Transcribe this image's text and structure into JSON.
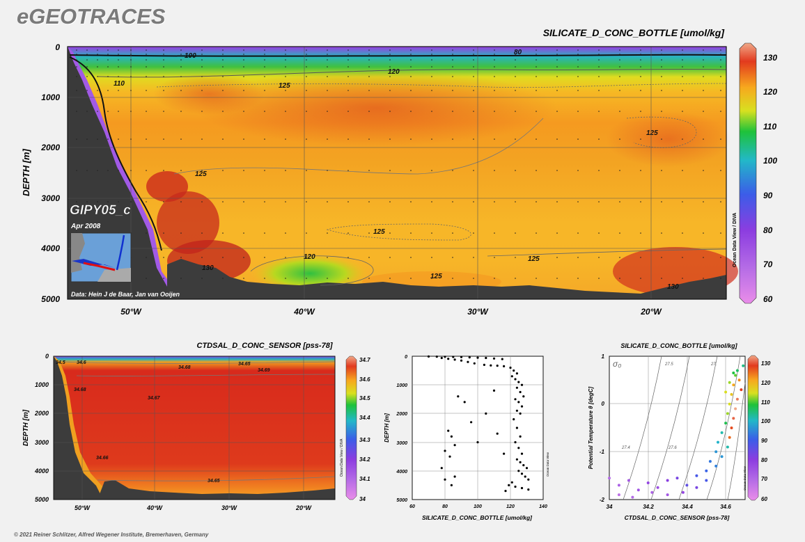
{
  "brand": "eGEOTRACES",
  "copyright": "© 2021 Reiner Schlitzer, Alfred Wegener Institute, Bremerhaven, Germany",
  "chart_data": [
    {
      "id": "main",
      "type": "heatmap",
      "title": "SILICATE_D_CONC_BOTTLE [umol/kg]",
      "ylabel": "DEPTH [m]",
      "xlabel": "",
      "x_ticks": [
        "50°W",
        "40°W",
        "30°W",
        "20°W"
      ],
      "y_ticks": [
        "0",
        "1000",
        "2000",
        "3000",
        "4000",
        "5000"
      ],
      "ylim": [
        0,
        5000
      ],
      "colorbar": {
        "min": 60,
        "max": 130,
        "ticks": [
          "130",
          "120",
          "110",
          "100",
          "90",
          "80",
          "70",
          "60"
        ]
      },
      "contour_labels": [
        "100",
        "80",
        "120",
        "110",
        "125",
        "125",
        "125",
        "125",
        "125",
        "120",
        "130",
        "130",
        "125"
      ],
      "cruise": "GIPY05_c",
      "date": "Apr 2008",
      "credit": "Data: Hein J de Baar, Jan van Ooijen",
      "watermark": "Ocean Data View / DIVA",
      "grid": true
    },
    {
      "id": "salinity",
      "type": "heatmap",
      "title": "CTDSAL_D_CONC_SENSOR [pss-78]",
      "ylabel": "DEPTH [m]",
      "x_ticks": [
        "50°W",
        "40°W",
        "30°W",
        "20°W"
      ],
      "y_ticks": [
        "0",
        "1000",
        "2000",
        "3000",
        "4000",
        "5000"
      ],
      "ylim": [
        0,
        5000
      ],
      "colorbar": {
        "min": 34,
        "max": 34.7,
        "ticks": [
          "34.7",
          "34.6",
          "34.5",
          "34.4",
          "34.3",
          "34.2",
          "34.1",
          "34"
        ]
      },
      "contour_labels": [
        "34.5",
        "34.6",
        "34.68",
        "34.65",
        "34.69",
        "34.68",
        "34.67",
        "34.66",
        "34.65"
      ],
      "watermark": "Ocean Data View / DIVA"
    },
    {
      "id": "profile",
      "type": "scatter",
      "xlabel": "SILICATE_D_CONC_BOTTLE [umol/kg]",
      "ylabel": "DEPTH [m]",
      "xlim": [
        60,
        140
      ],
      "ylim": [
        0,
        5000
      ],
      "x_ticks": [
        "60",
        "80",
        "100",
        "120",
        "140"
      ],
      "y_ticks": [
        "0",
        "1000",
        "2000",
        "3000",
        "4000",
        "5000"
      ],
      "watermark": "Ocean Data View",
      "series": [
        {
          "points": [
            [
              70,
              10
            ],
            [
              75,
              15
            ],
            [
              80,
              20
            ],
            [
              85,
              25
            ],
            [
              90,
              30
            ],
            [
              95,
              40
            ],
            [
              100,
              50
            ],
            [
              105,
              60
            ],
            [
              110,
              80
            ],
            [
              115,
              100
            ],
            [
              78,
              60
            ],
            [
              82,
              90
            ],
            [
              86,
              120
            ],
            [
              90,
              150
            ],
            [
              94,
              200
            ],
            [
              98,
              250
            ],
            [
              104,
              300
            ],
            [
              108,
              320
            ],
            [
              112,
              330
            ],
            [
              116,
              350
            ],
            [
              120,
              400
            ],
            [
              122,
              500
            ],
            [
              124,
              600
            ],
            [
              121,
              700
            ],
            [
              123,
              800
            ],
            [
              125,
              900
            ],
            [
              127,
              1000
            ],
            [
              124,
              1100
            ],
            [
              126,
              1250
            ],
            [
              128,
              1400
            ],
            [
              123,
              1500
            ],
            [
              125,
              1600
            ],
            [
              127,
              1750
            ],
            [
              124,
              1900
            ],
            [
              126,
              2000
            ],
            [
              122,
              2200
            ],
            [
              124,
              2500
            ],
            [
              126,
              2800
            ],
            [
              123,
              3000
            ],
            [
              125,
              3200
            ],
            [
              127,
              3400
            ],
            [
              124,
              3600
            ],
            [
              126,
              3700
            ],
            [
              128,
              3800
            ],
            [
              130,
              3900
            ],
            [
              125,
              4000
            ],
            [
              127,
              4100
            ],
            [
              129,
              4200
            ],
            [
              131,
              4300
            ],
            [
              121,
              4400
            ],
            [
              119,
              4500
            ],
            [
              123,
              4550
            ],
            [
              127,
              4600
            ],
            [
              131,
              4650
            ],
            [
              117,
              4700
            ],
            [
              82,
              2600
            ],
            [
              84,
              2800
            ],
            [
              86,
              3100
            ],
            [
              80,
              3300
            ],
            [
              83,
              3500
            ],
            [
              88,
              1400
            ],
            [
              92,
              1600
            ],
            [
              96,
              2300
            ],
            [
              100,
              3000
            ],
            [
              105,
              2000
            ],
            [
              110,
              1200
            ],
            [
              112,
              2700
            ],
            [
              116,
              3400
            ],
            [
              86,
              4200
            ],
            [
              84,
              4500
            ],
            [
              78,
              3900
            ],
            [
              80,
              4300
            ]
          ]
        }
      ]
    },
    {
      "id": "ts",
      "type": "scatter",
      "title": "SILICATE_D_CONC_BOTTLE [umol/kg]",
      "xlabel": "CTDSAL_D_CONC_SENSOR [pss-78]",
      "ylabel": "Potential Temperature θ [degC]",
      "xlim": [
        34,
        34.7
      ],
      "ylim": [
        -2,
        1
      ],
      "x_ticks": [
        "34",
        "34.2",
        "34.4",
        "34.6"
      ],
      "y_ticks": [
        "1",
        "0",
        "-1",
        "-2"
      ],
      "sigma_label": "σ₀",
      "isopycnal_labels": [
        "27.5",
        "27.",
        "27.4",
        "27.6"
      ],
      "colorbar": {
        "min": 60,
        "max": 130,
        "ticks": [
          "130",
          "120",
          "110",
          "100",
          "90",
          "80",
          "70",
          "60"
        ]
      },
      "watermark": "Ocean Data View",
      "series": [
        {
          "points": [
            [
              34.0,
              -1.55,
              70
            ],
            [
              34.05,
              -1.7,
              72
            ],
            [
              34.1,
              -1.6,
              74
            ],
            [
              34.15,
              -1.8,
              75
            ],
            [
              34.2,
              -1.65,
              78
            ],
            [
              34.25,
              -1.75,
              76
            ],
            [
              34.3,
              -1.6,
              80
            ],
            [
              34.35,
              -1.55,
              82
            ],
            [
              34.4,
              -1.7,
              85
            ],
            [
              34.45,
              -1.5,
              88
            ],
            [
              34.5,
              -1.4,
              90
            ],
            [
              34.52,
              -1.2,
              92
            ],
            [
              34.55,
              -1.0,
              95
            ],
            [
              34.56,
              -0.8,
              98
            ],
            [
              34.58,
              -0.6,
              100
            ],
            [
              34.6,
              -0.4,
              105
            ],
            [
              34.61,
              -0.2,
              110
            ],
            [
              34.62,
              0.0,
              112
            ],
            [
              34.63,
              0.2,
              115
            ],
            [
              34.64,
              0.4,
              118
            ],
            [
              34.65,
              0.6,
              108
            ],
            [
              34.66,
              0.7,
              104
            ],
            [
              34.67,
              0.5,
              120
            ],
            [
              34.68,
              0.3,
              125
            ],
            [
              34.66,
              0.1,
              128
            ],
            [
              34.65,
              -0.1,
              130
            ],
            [
              34.64,
              -0.3,
              127
            ],
            [
              34.63,
              -0.5,
              124
            ],
            [
              34.62,
              -0.7,
              122
            ],
            [
              34.61,
              -0.9,
              100
            ],
            [
              34.58,
              -1.1,
              95
            ],
            [
              34.55,
              -1.3,
              93
            ],
            [
              34.5,
              -1.6,
              88
            ],
            [
              34.45,
              -1.75,
              82
            ],
            [
              34.38,
              -1.85,
              78
            ],
            [
              34.3,
              -1.9,
              74
            ],
            [
              34.22,
              -1.85,
              72
            ],
            [
              34.12,
              -1.95,
              70
            ],
            [
              34.05,
              -1.9,
              68
            ],
            [
              34.6,
              0.25,
              112
            ],
            [
              34.62,
              0.45,
              110
            ],
            [
              34.64,
              0.65,
              106
            ],
            [
              34.69,
              0.8,
              102
            ]
          ]
        }
      ]
    }
  ]
}
